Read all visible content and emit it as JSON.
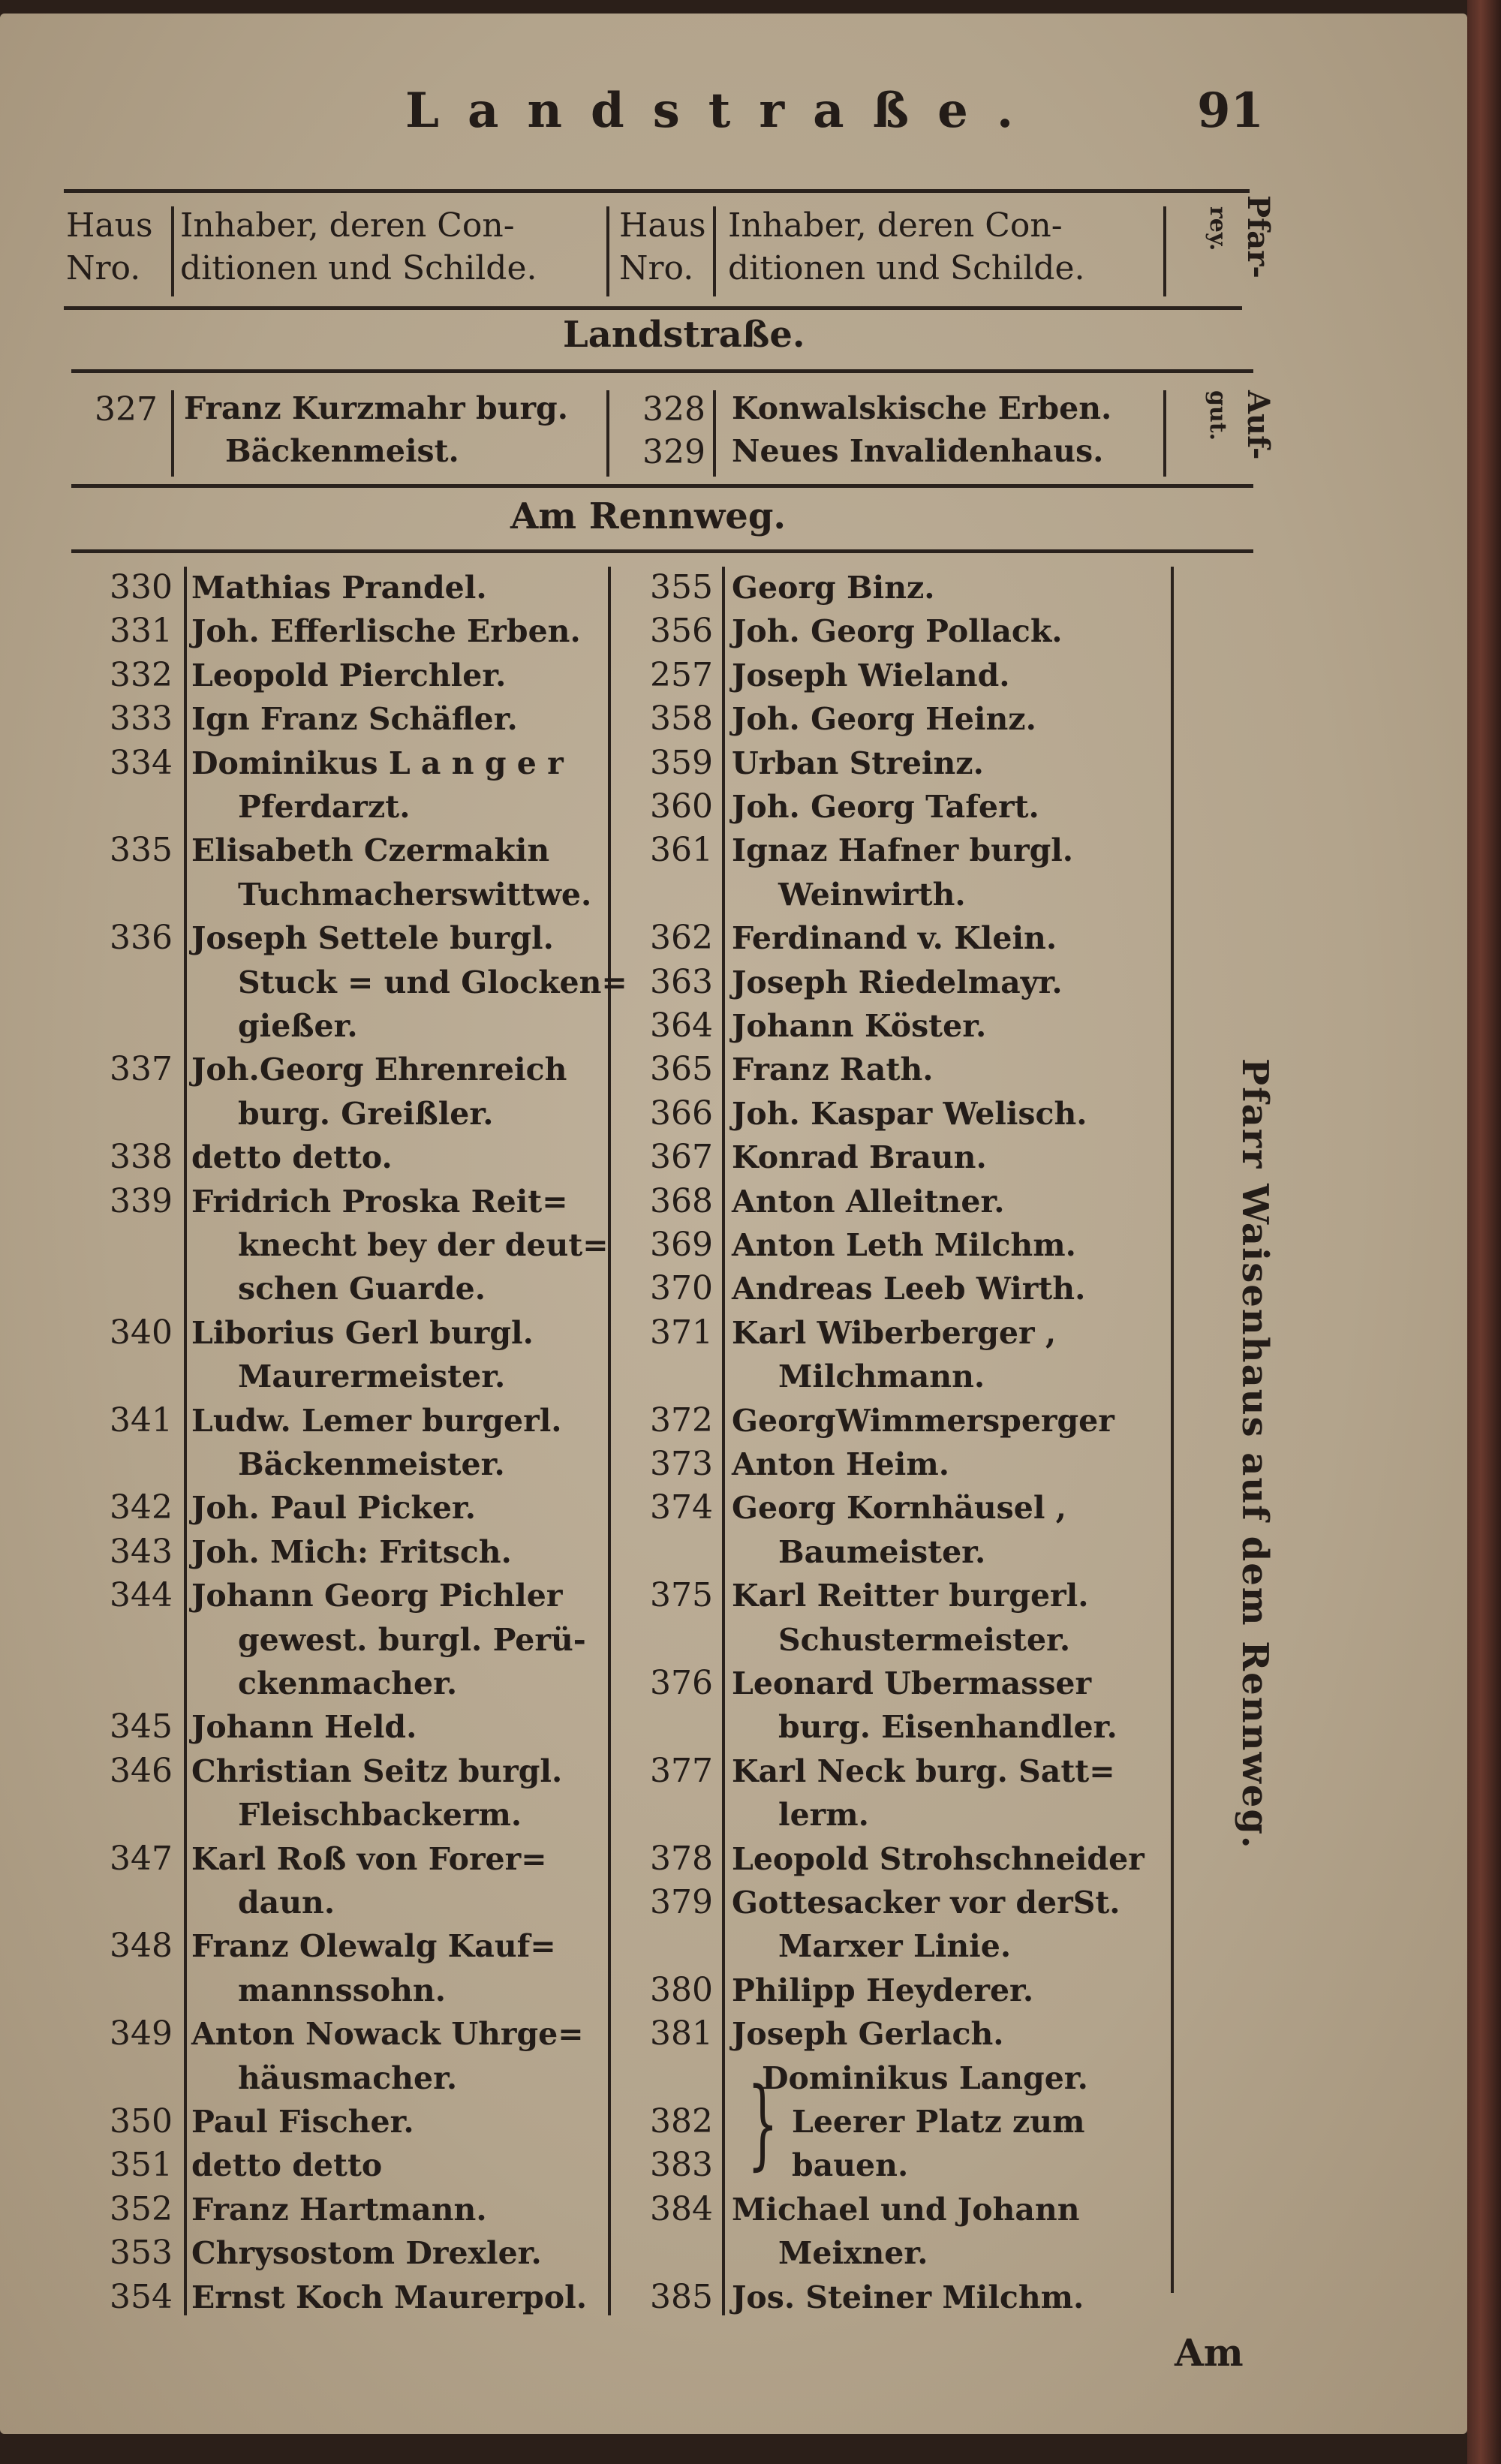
{
  "page": {
    "title": "Landstraße.",
    "number": "91",
    "catchword": "Am"
  },
  "header": {
    "col_num": [
      "Haus",
      "Nro."
    ],
    "col_owner": [
      "Inhaber, deren Con-",
      "ditionen und Schilde."
    ],
    "col_num2": [
      "Haus",
      "Nro."
    ],
    "col_owner2": [
      "Inhaber, deren Con-",
      "ditionen und Schilde."
    ],
    "side": [
      "Pfar-",
      "rey."
    ]
  },
  "section1": {
    "heading": "Landstraße.",
    "rows": [
      {
        "num": "327",
        "lines": [
          "Franz Kurzmahr burg.",
          "Bäckenmeist."
        ]
      },
      {
        "num": "328",
        "lines": [
          "Konwalskische Erben."
        ]
      },
      {
        "num": "329",
        "lines": [
          "Neues Invalidenhaus."
        ]
      }
    ],
    "side": [
      "Auf-",
      "gut."
    ]
  },
  "section2": {
    "heading": "Am Rennweg.",
    "side": "Pfarr Waisenhaus auf dem Rennweg.",
    "left": [
      {
        "n": "330",
        "t": "Mathias Prandel."
      },
      {
        "n": "331",
        "t": "Joh. Efferlische Erben."
      },
      {
        "n": "332",
        "t": "Leopold Pierchler."
      },
      {
        "n": "333",
        "t": "Ign Franz Schäfler."
      },
      {
        "n": "334",
        "t": "Dominikus  L a n g e r"
      },
      {
        "n": "",
        "t": "Pferdarzt.",
        "i": 1
      },
      {
        "n": "335",
        "t": "Elisabeth   Czermakin"
      },
      {
        "n": "",
        "t": "Tuchmacherswittwe.",
        "i": 1
      },
      {
        "n": "336",
        "t": "Joseph Settele burgl."
      },
      {
        "n": "",
        "t": "Stuck = und Glocken=",
        "i": 1
      },
      {
        "n": "",
        "t": "gießer.",
        "i": 1
      },
      {
        "n": "337",
        "t": "Joh.Georg Ehrenreich"
      },
      {
        "n": "",
        "t": "burg. Greißler.",
        "i": 1
      },
      {
        "n": "338",
        "t": "detto        detto."
      },
      {
        "n": "339",
        "t": "Fridrich Proska Reit="
      },
      {
        "n": "",
        "t": "knecht bey der deut=",
        "i": 1
      },
      {
        "n": "",
        "t": "schen Guarde.",
        "i": 1
      },
      {
        "n": "340",
        "t": "Liborius Gerl burgl."
      },
      {
        "n": "",
        "t": "Maurermeister.",
        "i": 1
      },
      {
        "n": "341",
        "t": "Ludw. Lemer burgerl."
      },
      {
        "n": "",
        "t": "Bäckenmeister.",
        "i": 1
      },
      {
        "n": "342",
        "t": "Joh. Paul Picker."
      },
      {
        "n": "343",
        "t": "Joh. Mich: Fritsch."
      },
      {
        "n": "344",
        "t": "Johann Georg Pichler"
      },
      {
        "n": "",
        "t": "gewest. burgl. Perü-",
        "i": 1
      },
      {
        "n": "",
        "t": "ckenmacher.",
        "i": 1
      },
      {
        "n": "345",
        "t": "Johann Held."
      },
      {
        "n": "346",
        "t": "Christian Seitz burgl."
      },
      {
        "n": "",
        "t": "Fleischbackerm.",
        "i": 1
      },
      {
        "n": "347",
        "t": "Karl Roß von Forer="
      },
      {
        "n": "",
        "t": "daun.",
        "i": 1
      },
      {
        "n": "348",
        "t": "Franz Olewalg Kauf="
      },
      {
        "n": "",
        "t": "mannssohn.",
        "i": 1
      },
      {
        "n": "349",
        "t": "Anton Nowack Uhrge="
      },
      {
        "n": "",
        "t": "häusmacher.",
        "i": 1
      },
      {
        "n": "350",
        "t": "Paul Fischer."
      },
      {
        "n": "351",
        "t": "detto        detto"
      },
      {
        "n": "352",
        "t": "Franz Hartmann."
      },
      {
        "n": "353",
        "t": "Chrysostom Drexler."
      },
      {
        "n": "354",
        "t": "Ernst Koch Maurerpol."
      }
    ],
    "right": [
      {
        "n": "355",
        "t": "Georg Binz."
      },
      {
        "n": "356",
        "t": "Joh. Georg Pollack."
      },
      {
        "n": "257",
        "t": "Joseph Wieland."
      },
      {
        "n": "358",
        "t": "Joh. Georg Heinz."
      },
      {
        "n": "359",
        "t": "Urban Streinz."
      },
      {
        "n": "360",
        "t": "Joh. Georg Tafert."
      },
      {
        "n": "361",
        "t": "Ignaz Hafner  burgl."
      },
      {
        "n": "",
        "t": "Weinwirth.",
        "i": 1
      },
      {
        "n": "362",
        "t": "Ferdinand v. Klein."
      },
      {
        "n": "363",
        "t": "Joseph Riedelmayr."
      },
      {
        "n": "364",
        "t": "Johann Köster."
      },
      {
        "n": "365",
        "t": "Franz Rath."
      },
      {
        "n": "366",
        "t": "Joh. Kaspar Welisch."
      },
      {
        "n": "367",
        "t": "Konrad Braun."
      },
      {
        "n": "368",
        "t": "Anton Alleitner."
      },
      {
        "n": "369",
        "t": "Anton Leth Milchm."
      },
      {
        "n": "370",
        "t": "Andreas Leeb Wirth."
      },
      {
        "n": "371",
        "t": "Karl   Wiberberger ,"
      },
      {
        "n": "",
        "t": "Milchmann.",
        "i": 1
      },
      {
        "n": "372",
        "t": "GeorgWimmersperger"
      },
      {
        "n": "373",
        "t": "Anton Heim."
      },
      {
        "n": "374",
        "t": "Georg  Kornhäusel ,"
      },
      {
        "n": "",
        "t": "Baumeister.",
        "i": 1
      },
      {
        "n": "375",
        "t": "Karl Reitter burgerl."
      },
      {
        "n": "",
        "t": "Schustermeister.",
        "i": 1
      },
      {
        "n": "376",
        "t": "Leonard  Ubermasser"
      },
      {
        "n": "",
        "t": "burg. Eisenhandler.",
        "i": 1
      },
      {
        "n": "377",
        "t": "Karl Neck burg. Satt="
      },
      {
        "n": "",
        "t": "lerm.",
        "i": 1
      },
      {
        "n": "378",
        "t": "Leopold Strohschneider"
      },
      {
        "n": "379",
        "t": "Gottesacker vor derSt."
      },
      {
        "n": "",
        "t": "Marxer Linie.",
        "i": 1
      },
      {
        "n": "380",
        "t": "Philipp Heyderer."
      },
      {
        "n": "381",
        "t": "Joseph Gerlach."
      },
      {
        "n": "",
        "t": "Dominikus Langer.",
        "i": 2
      },
      {
        "n": "382",
        "t": "Leerer Platz zum",
        "i": 3
      },
      {
        "n": "383",
        "t": "bauen.",
        "i": 3
      },
      {
        "n": "384",
        "t": "Michael und Johann"
      },
      {
        "n": "",
        "t": "Meixner.",
        "i": 1
      },
      {
        "n": "385",
        "t": "Jos. Steiner Milchm."
      }
    ]
  }
}
